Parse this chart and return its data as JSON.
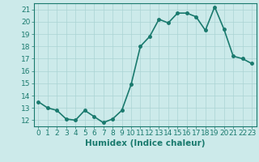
{
  "title": "",
  "xlabel": "Humidex (Indice chaleur)",
  "ylabel": "",
  "x": [
    0,
    1,
    2,
    3,
    4,
    5,
    6,
    7,
    8,
    9,
    10,
    11,
    12,
    13,
    14,
    15,
    16,
    17,
    18,
    19,
    20,
    21,
    22,
    23
  ],
  "y": [
    13.5,
    13.0,
    12.8,
    12.1,
    12.0,
    12.8,
    12.3,
    11.8,
    12.1,
    12.8,
    14.9,
    18.0,
    18.8,
    20.2,
    19.9,
    20.7,
    20.7,
    20.4,
    19.3,
    21.2,
    19.4,
    17.2,
    17.0,
    16.6
  ],
  "line_color": "#1a7a6e",
  "marker_color": "#1a7a6e",
  "bg_color": "#cceaea",
  "grid_color": "#aad4d4",
  "ylim": [
    11.5,
    21.5
  ],
  "xlim": [
    -0.5,
    23.5
  ],
  "yticks": [
    12,
    13,
    14,
    15,
    16,
    17,
    18,
    19,
    20,
    21
  ],
  "xticks": [
    0,
    1,
    2,
    3,
    4,
    5,
    6,
    7,
    8,
    9,
    10,
    11,
    12,
    13,
    14,
    15,
    16,
    17,
    18,
    19,
    20,
    21,
    22,
    23
  ],
  "xtick_labels": [
    "0",
    "1",
    "2",
    "3",
    "4",
    "5",
    "6",
    "7",
    "8",
    "9",
    "10",
    "11",
    "12",
    "13",
    "14",
    "15",
    "16",
    "17",
    "18",
    "19",
    "20",
    "21",
    "22",
    "23"
  ],
  "line_width": 1.2,
  "marker_size": 2.5,
  "xlabel_fontsize": 7.5,
  "tick_fontsize": 6.5
}
